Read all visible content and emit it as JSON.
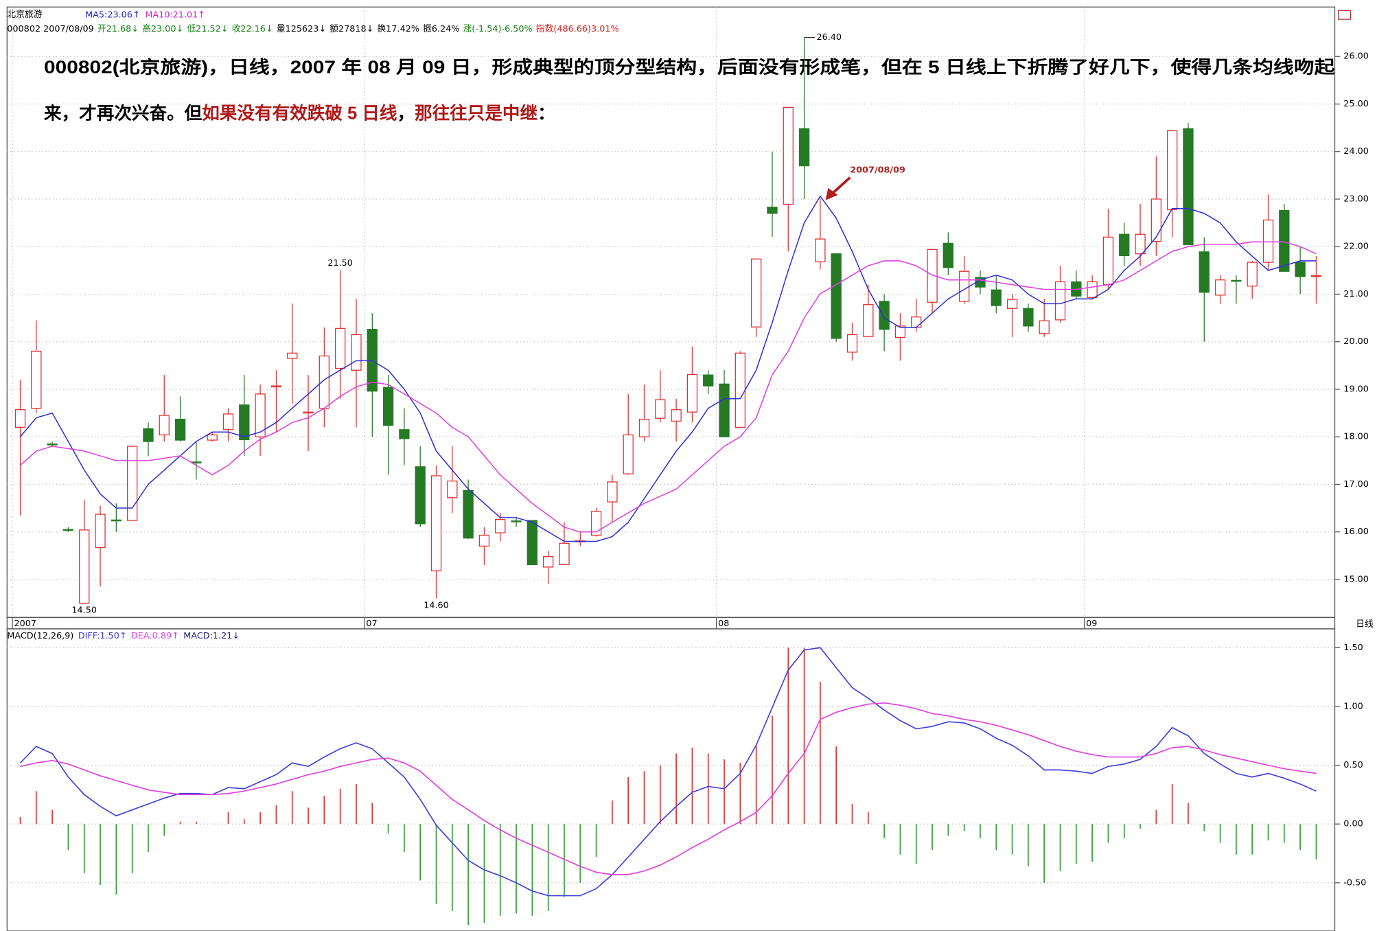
{
  "header": {
    "name": "北京旅游",
    "ma": [
      {
        "label": "MA5:23.06↑",
        "color": "#2020d0"
      },
      {
        "label": "MA10:21.01↑",
        "color": "#d020d0"
      }
    ],
    "quote": [
      {
        "text": "000802 2007/08/09",
        "color": "#000"
      },
      {
        "text": "开21.68↓",
        "color": "#108010"
      },
      {
        "text": "高23.00↓",
        "color": "#108010"
      },
      {
        "text": "低21.52↓",
        "color": "#108010"
      },
      {
        "text": "收22.16↓",
        "color": "#108010"
      },
      {
        "text": "量125623↓",
        "color": "#000"
      },
      {
        "text": "额27818↓",
        "color": "#000"
      },
      {
        "text": "换17.42%",
        "color": "#000"
      },
      {
        "text": "振6.24%",
        "color": "#000"
      },
      {
        "text": "涨(-1.54)-6.50%",
        "color": "#108010"
      },
      {
        "text": "指数(486.66)3.01%",
        "color": "#d02020"
      }
    ],
    "period": "日线"
  },
  "annotation": {
    "line1": "000802(北京旅游)，日线，2007 年 08 月 09 日，形成典型的顶分型结构，后面没有形成笔，但在 5 日线上下折腾了好几下，使得几条均线吻起",
    "line2": [
      {
        "text": "来，才再次兴奋。但",
        "color": "#000"
      },
      {
        "text": "如果没有有效跌破 5 日线",
        "color": "#b01818"
      },
      {
        "text": "，",
        "color": "#000"
      },
      {
        "text": "那往往只是中继",
        "color": "#b01818"
      },
      {
        "text": "：",
        "color": "#000"
      }
    ],
    "callout": "2007/08/09"
  },
  "chart_data": [
    {
      "type": "candlestick",
      "up_color": "#e03030",
      "down_color": "#267a26",
      "open": [
        18.2,
        18.6,
        17.85,
        16.05,
        14.5,
        15.67,
        16.25,
        16.24,
        18.17,
        18.04,
        18.37,
        17.47,
        17.93,
        18.15,
        18.67,
        18.0,
        19.05,
        19.65,
        18.5,
        18.6,
        19.44,
        19.4,
        20.26,
        19.04,
        18.15,
        17.37,
        15.18,
        16.72,
        16.87,
        15.7,
        15.98,
        16.23,
        16.24,
        15.26,
        15.31,
        15.8,
        15.93,
        16.63,
        17.22,
        18.0,
        18.39,
        18.33,
        18.52,
        19.3,
        19.11,
        18.2,
        20.31,
        22.83,
        22.89,
        24.48,
        21.68,
        21.85,
        19.78,
        20.11,
        20.85,
        20.09,
        20.3,
        20.83,
        22.07,
        20.85,
        21.35,
        21.09,
        20.7,
        20.7,
        20.17,
        20.46,
        21.26,
        20.93,
        21.2,
        22.26,
        21.85,
        22.11,
        22.78,
        24.48,
        21.89,
        20.98,
        21.29,
        21.17,
        21.67,
        22.76,
        21.67,
        21.38
      ],
      "high": [
        19.2,
        20.45,
        17.9,
        16.1,
        16.67,
        16.55,
        16.6,
        17.8,
        18.3,
        19.3,
        18.85,
        17.9,
        18.1,
        18.6,
        19.3,
        19.1,
        19.4,
        20.8,
        19.3,
        20.3,
        21.5,
        20.9,
        20.6,
        19.3,
        18.6,
        17.8,
        17.4,
        17.8,
        17.1,
        16.1,
        16.4,
        16.3,
        16.24,
        15.6,
        16.2,
        16.0,
        16.5,
        17.2,
        18.9,
        19.1,
        19.4,
        18.8,
        19.9,
        19.4,
        19.4,
        19.8,
        21.75,
        24.0,
        24.93,
        26.4,
        23.0,
        21.85,
        20.4,
        21.2,
        21.0,
        20.6,
        20.9,
        21.94,
        22.3,
        21.8,
        21.5,
        21.4,
        21.0,
        20.8,
        20.9,
        21.6,
        21.5,
        21.4,
        22.8,
        22.5,
        22.9,
        23.9,
        24.44,
        24.6,
        22.2,
        21.4,
        21.4,
        21.7,
        23.1,
        22.9,
        22.0,
        21.8
      ],
      "low": [
        16.35,
        18.5,
        17.8,
        16.0,
        14.5,
        14.85,
        16.0,
        16.24,
        17.6,
        17.9,
        17.9,
        17.1,
        17.9,
        17.9,
        17.6,
        17.6,
        18.1,
        18.7,
        17.7,
        18.2,
        18.8,
        18.2,
        18.0,
        17.2,
        17.4,
        16.1,
        14.6,
        16.4,
        15.85,
        15.3,
        15.8,
        16.1,
        15.31,
        14.9,
        15.3,
        15.7,
        15.9,
        16.2,
        17.2,
        17.9,
        18.3,
        17.9,
        18.3,
        18.9,
        18.0,
        18.2,
        20.1,
        22.2,
        21.9,
        23.0,
        21.52,
        20.0,
        19.6,
        20.1,
        19.8,
        19.6,
        20.2,
        20.6,
        21.4,
        20.8,
        21.0,
        20.6,
        20.1,
        20.2,
        20.1,
        20.4,
        20.9,
        20.9,
        21.1,
        21.6,
        21.6,
        21.8,
        22.2,
        22.04,
        20.0,
        20.8,
        20.8,
        20.9,
        21.5,
        21.5,
        21.0,
        20.8
      ],
      "close": [
        18.57,
        19.8,
        17.83,
        16.04,
        16.04,
        16.37,
        16.24,
        17.8,
        17.9,
        18.45,
        17.93,
        17.45,
        18.04,
        18.48,
        17.94,
        18.9,
        19.07,
        19.76,
        18.52,
        19.7,
        20.28,
        20.15,
        18.96,
        18.24,
        17.96,
        16.17,
        17.18,
        17.07,
        15.87,
        15.93,
        16.26,
        16.22,
        15.31,
        15.48,
        15.76,
        15.81,
        16.43,
        17.05,
        18.04,
        18.37,
        18.78,
        18.57,
        19.31,
        19.07,
        18.0,
        19.76,
        21.74,
        22.7,
        24.93,
        23.7,
        22.16,
        20.07,
        20.15,
        20.78,
        20.26,
        20.33,
        20.52,
        21.94,
        21.56,
        21.48,
        21.15,
        20.76,
        20.89,
        20.33,
        20.44,
        21.26,
        20.96,
        21.26,
        22.2,
        21.81,
        22.26,
        23.0,
        24.44,
        22.04,
        21.04,
        21.3,
        21.28,
        21.67,
        22.56,
        21.48,
        21.37,
        21.39
      ],
      "series": [
        {
          "name": "MA5",
          "color": "#3030d8",
          "values": [
            18.0,
            18.4,
            18.5,
            17.9,
            17.3,
            16.8,
            16.5,
            16.5,
            17.0,
            17.3,
            17.6,
            17.9,
            18.1,
            18.1,
            18.0,
            18.1,
            18.3,
            18.6,
            18.9,
            19.2,
            19.4,
            19.6,
            19.6,
            19.4,
            19.0,
            18.5,
            17.7,
            17.3,
            16.9,
            16.6,
            16.3,
            16.3,
            16.2,
            16.0,
            15.8,
            15.8,
            15.8,
            15.9,
            16.2,
            16.7,
            17.2,
            17.7,
            18.1,
            18.6,
            18.8,
            18.8,
            19.4,
            20.4,
            21.5,
            22.5,
            23.06,
            22.6,
            21.9,
            21.1,
            20.5,
            20.3,
            20.3,
            20.6,
            20.9,
            21.1,
            21.3,
            21.4,
            21.3,
            21.0,
            20.8,
            20.8,
            20.9,
            20.9,
            21.1,
            21.5,
            21.8,
            22.2,
            22.8,
            22.8,
            22.7,
            22.5,
            22.1,
            21.8,
            21.5,
            21.6,
            21.7,
            21.7
          ]
        },
        {
          "name": "MA10",
          "color": "#e040e0",
          "values": [
            17.4,
            17.7,
            17.8,
            17.75,
            17.7,
            17.6,
            17.5,
            17.5,
            17.5,
            17.55,
            17.6,
            17.4,
            17.2,
            17.4,
            17.7,
            17.95,
            18.1,
            18.3,
            18.4,
            18.6,
            18.85,
            19.05,
            19.15,
            19.1,
            18.9,
            18.7,
            18.5,
            18.2,
            18.0,
            17.6,
            17.2,
            16.9,
            16.6,
            16.35,
            16.1,
            16.0,
            16.0,
            16.2,
            16.4,
            16.6,
            16.75,
            16.9,
            17.2,
            17.5,
            17.8,
            18.0,
            18.4,
            19.3,
            19.8,
            20.5,
            21.01,
            21.2,
            21.4,
            21.6,
            21.7,
            21.7,
            21.6,
            21.4,
            21.3,
            21.3,
            21.3,
            21.25,
            21.2,
            21.15,
            21.1,
            21.1,
            21.1,
            21.15,
            21.2,
            21.3,
            21.5,
            21.7,
            21.9,
            22.0,
            22.05,
            22.05,
            22.05,
            22.1,
            22.1,
            22.1,
            22.0,
            21.85
          ]
        }
      ],
      "ylim": [
        14.2,
        27.04
      ],
      "yticks": [
        {
          "value": 15,
          "label": "15.00"
        },
        {
          "value": 16,
          "label": "16.00"
        },
        {
          "value": 17,
          "label": "17.00"
        },
        {
          "value": 18,
          "label": "18.00"
        },
        {
          "value": 19,
          "label": "19.00"
        },
        {
          "value": 20,
          "label": "20.00"
        },
        {
          "value": 21,
          "label": "21.00"
        },
        {
          "value": 22,
          "label": "22.00"
        },
        {
          "value": 23,
          "label": "23.00"
        },
        {
          "value": 24,
          "label": "24.00"
        },
        {
          "value": 25,
          "label": "25.00"
        },
        {
          "value": 26,
          "label": "26.00"
        }
      ],
      "xticks": [
        {
          "value": 0,
          "label": "2007"
        },
        {
          "value": 22,
          "label": "07"
        },
        {
          "value": 44,
          "label": "08"
        },
        {
          "value": 67,
          "label": "09"
        }
      ],
      "point_labels": [
        {
          "label": "26.40",
          "x": 49,
          "value": 26.4
        },
        {
          "label": "21.50",
          "x": 20,
          "value": 21.5
        },
        {
          "label": "14.50",
          "x": 4,
          "value": 14.5
        },
        {
          "label": "14.60",
          "x": 26,
          "value": 14.6
        }
      ],
      "grid": true
    },
    {
      "type": "macd",
      "title": "MACD(12,26,9)",
      "up_color": "#e03030",
      "down_color": "#3a9a3a",
      "series": [
        {
          "name": "DIFF:1.50↑",
          "color": "#4040e0",
          "values": [
            0.52,
            0.66,
            0.6,
            0.4,
            0.25,
            0.15,
            0.07,
            0.12,
            0.17,
            0.22,
            0.26,
            0.26,
            0.25,
            0.31,
            0.3,
            0.36,
            0.42,
            0.52,
            0.49,
            0.57,
            0.64,
            0.69,
            0.64,
            0.52,
            0.4,
            0.21,
            -0.01,
            -0.16,
            -0.31,
            -0.39,
            -0.44,
            -0.5,
            -0.57,
            -0.61,
            -0.61,
            -0.61,
            -0.55,
            -0.43,
            -0.28,
            -0.13,
            0.02,
            0.15,
            0.27,
            0.32,
            0.3,
            0.43,
            0.67,
            0.99,
            1.31,
            1.48,
            1.5,
            1.33,
            1.16,
            1.07,
            0.97,
            0.88,
            0.81,
            0.83,
            0.87,
            0.86,
            0.81,
            0.73,
            0.67,
            0.58,
            0.46,
            0.46,
            0.45,
            0.43,
            0.49,
            0.51,
            0.55,
            0.66,
            0.82,
            0.75,
            0.6,
            0.51,
            0.43,
            0.4,
            0.43,
            0.39,
            0.34,
            0.28
          ]
        },
        {
          "name": "DEA:0.89↑",
          "color": "#e040e0",
          "values": [
            0.49,
            0.52,
            0.54,
            0.51,
            0.46,
            0.41,
            0.37,
            0.33,
            0.29,
            0.27,
            0.25,
            0.25,
            0.25,
            0.26,
            0.28,
            0.31,
            0.34,
            0.38,
            0.42,
            0.45,
            0.49,
            0.52,
            0.55,
            0.56,
            0.52,
            0.45,
            0.33,
            0.21,
            0.12,
            0.03,
            -0.05,
            -0.12,
            -0.18,
            -0.24,
            -0.3,
            -0.36,
            -0.41,
            -0.43,
            -0.43,
            -0.4,
            -0.35,
            -0.28,
            -0.2,
            -0.13,
            -0.05,
            0.02,
            0.1,
            0.24,
            0.43,
            0.6,
            0.89,
            0.95,
            0.99,
            1.02,
            1.03,
            1.01,
            0.98,
            0.94,
            0.92,
            0.89,
            0.87,
            0.84,
            0.8,
            0.76,
            0.71,
            0.66,
            0.62,
            0.59,
            0.57,
            0.57,
            0.57,
            0.6,
            0.65,
            0.66,
            0.63,
            0.59,
            0.56,
            0.53,
            0.5,
            0.47,
            0.45,
            0.43
          ]
        },
        {
          "name": "MACD:1.21↓",
          "color": "#202080",
          "values": [
            0.06,
            0.28,
            0.12,
            -0.22,
            -0.42,
            -0.52,
            -0.6,
            -0.42,
            -0.24,
            -0.1,
            0.02,
            0.02,
            0,
            0.1,
            0.04,
            0.1,
            0.16,
            0.28,
            0.14,
            0.24,
            0.3,
            0.34,
            0.18,
            -0.08,
            -0.24,
            -0.48,
            -0.68,
            -0.74,
            -0.86,
            -0.84,
            -0.78,
            -0.76,
            -0.78,
            -0.74,
            -0.62,
            -0.5,
            -0.28,
            0.2,
            0.4,
            0.45,
            0.5,
            0.6,
            0.65,
            0.6,
            0.55,
            0.52,
            0.67,
            0.92,
            1.5,
            1.5,
            1.21,
            0.66,
            0.17,
            0.1,
            -0.12,
            -0.26,
            -0.34,
            -0.22,
            -0.1,
            -0.06,
            -0.12,
            -0.22,
            -0.26,
            -0.36,
            -0.5,
            -0.4,
            -0.34,
            -0.32,
            -0.16,
            -0.12,
            -0.04,
            0.12,
            0.34,
            0.18,
            -0.06,
            -0.16,
            -0.26,
            -0.26,
            -0.14,
            -0.16,
            -0.22,
            -0.3
          ]
        }
      ],
      "ylim": [
        -0.91,
        1.66
      ],
      "yticks": [
        {
          "value": -0.5,
          "label": "-0.50"
        },
        {
          "value": 0,
          "label": "0.00"
        },
        {
          "value": 0.5,
          "label": "0.50"
        },
        {
          "value": 1,
          "label": "1.00"
        },
        {
          "value": 1.5,
          "label": "1.50"
        }
      ],
      "grid": true
    }
  ]
}
